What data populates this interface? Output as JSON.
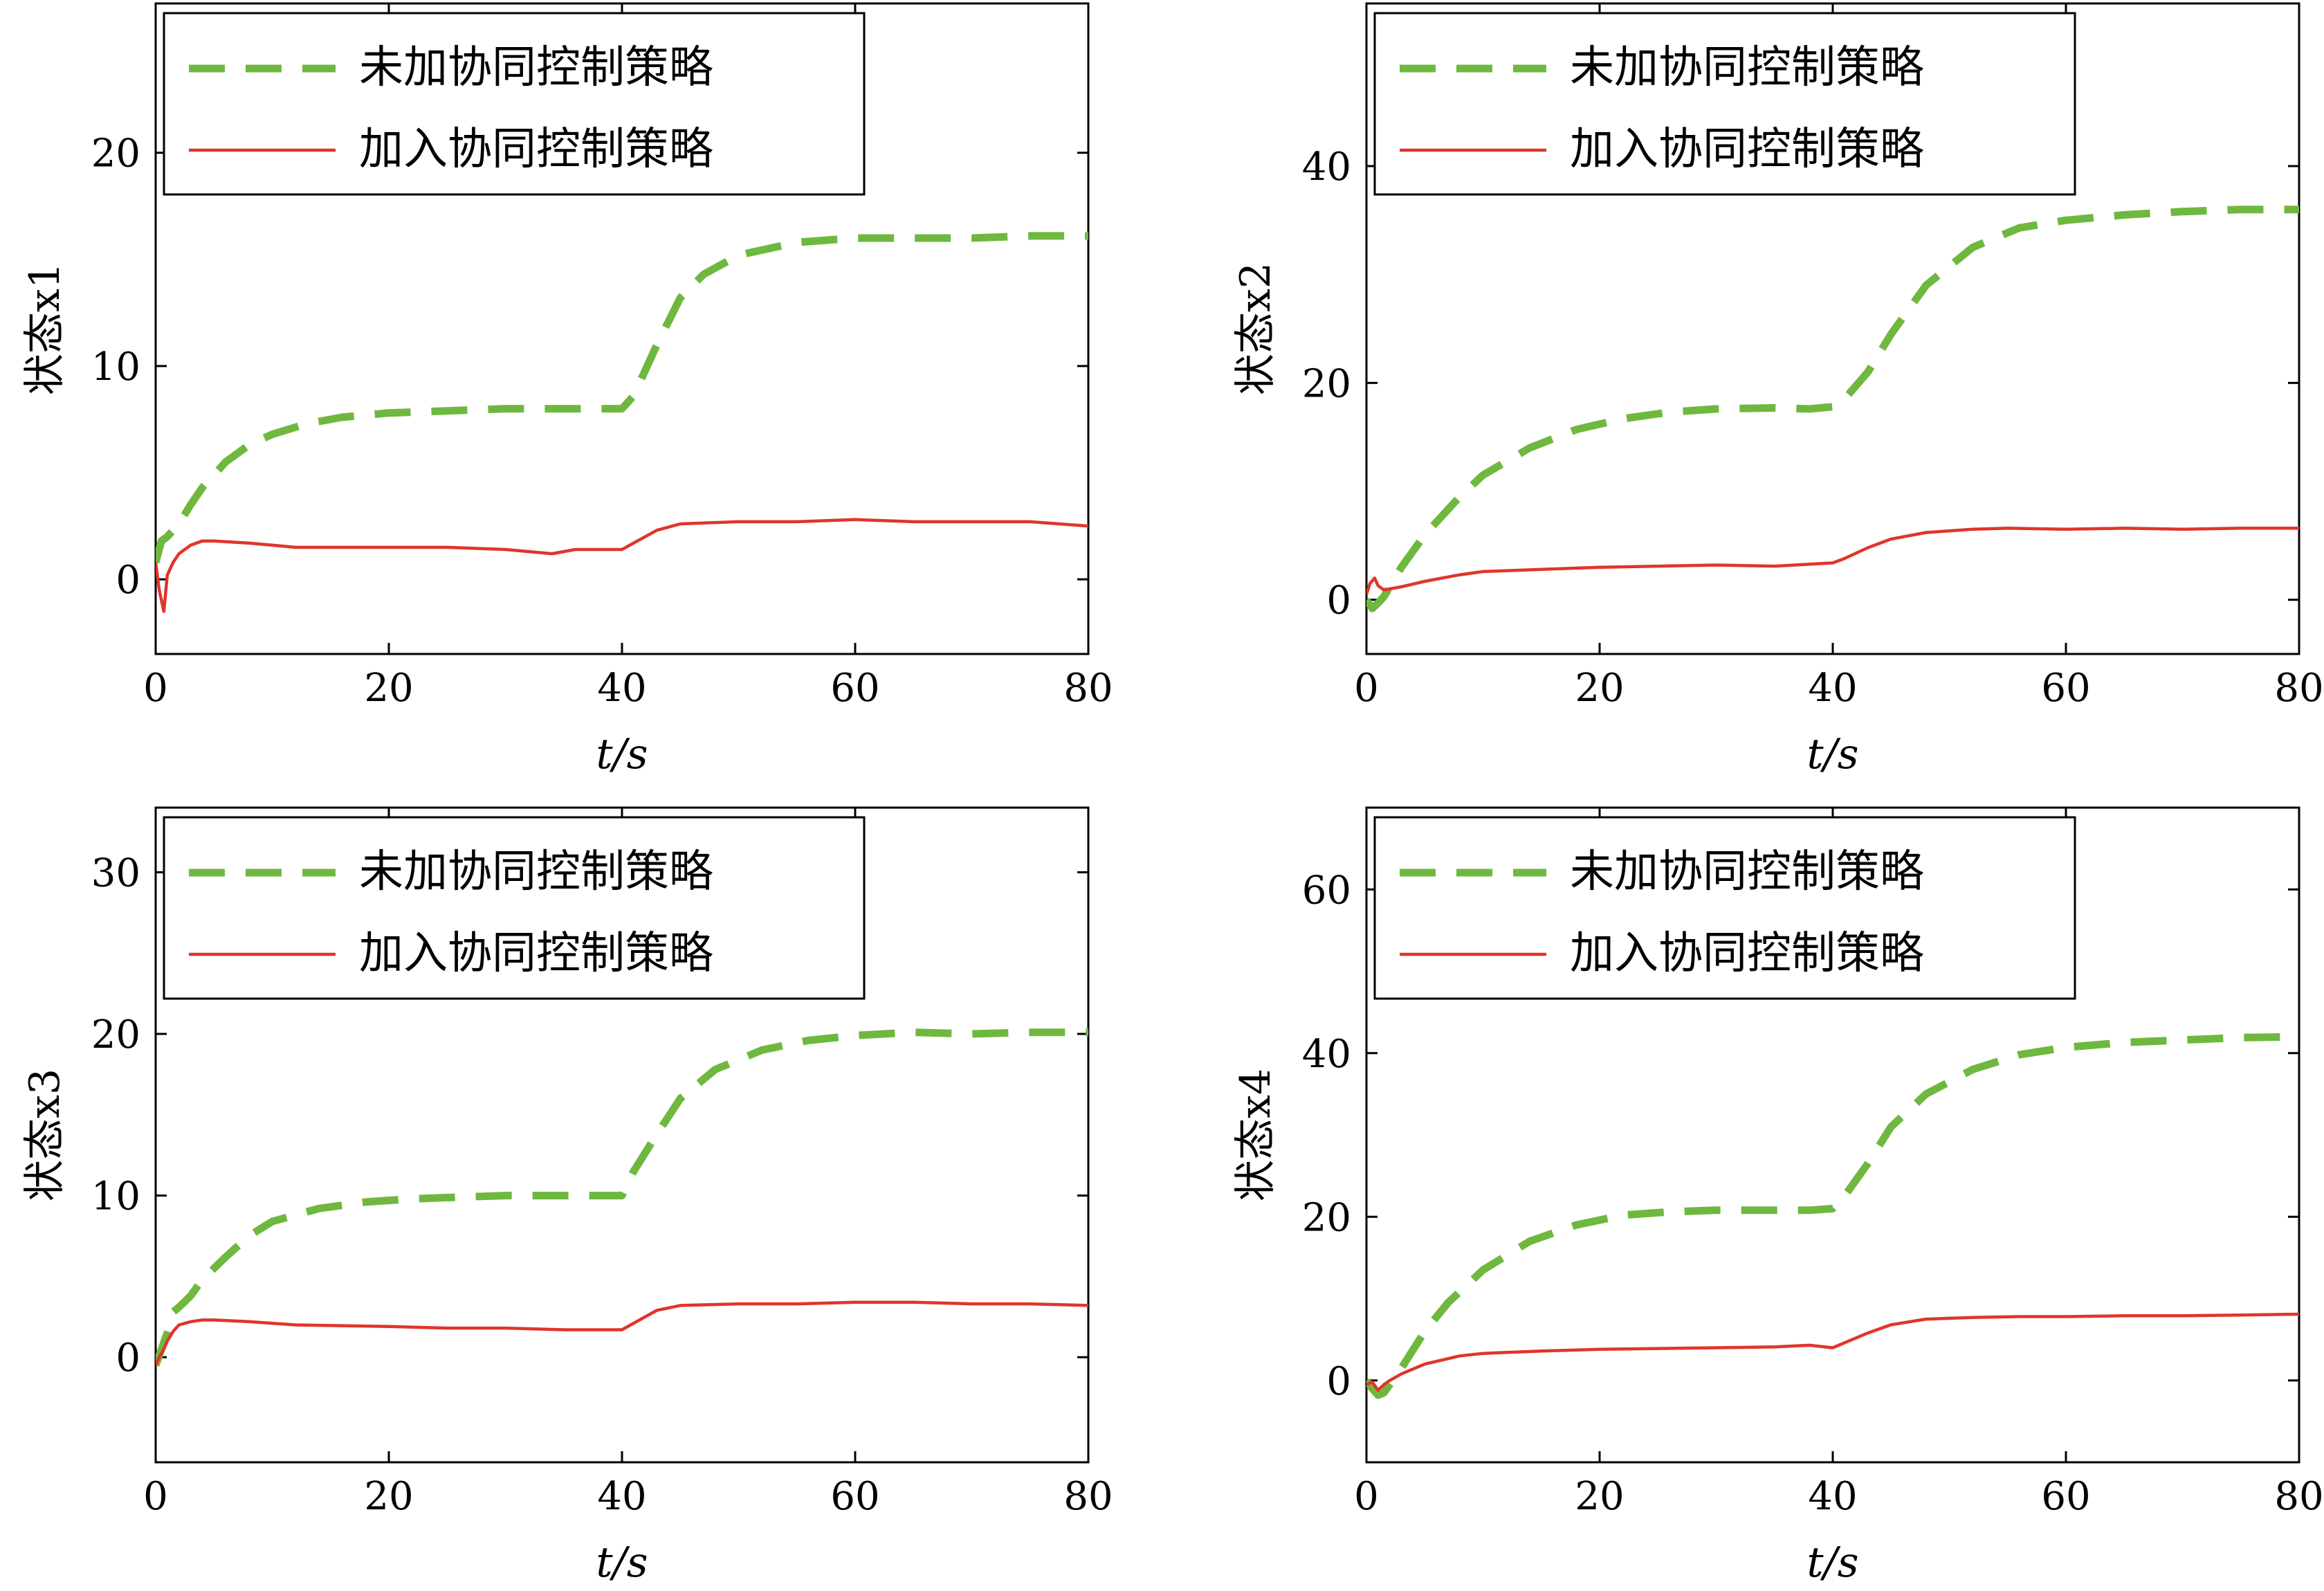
{
  "colors": {
    "without": "#6fb83f",
    "with": "#e0352b",
    "axis": "#000000"
  },
  "chart_data": [
    {
      "type": "line",
      "title": "",
      "xlabel": "t/s",
      "ylabel": "状态x1",
      "xlim": [
        0,
        80
      ],
      "ylim": [
        -3.5,
        27
      ],
      "xticks": [
        "0",
        "20",
        "40",
        "60",
        "80"
      ],
      "yticks": [
        "0",
        "10",
        "20"
      ],
      "ytick_values": [
        0,
        10,
        20
      ],
      "legend": {
        "position": "top-left",
        "entries": [
          "未加协同控制策略",
          "加入协同控制策略"
        ]
      },
      "series": [
        {
          "name": "未加协同控制策略",
          "style": "dashed",
          "x": [
            0,
            0.5,
            1,
            2,
            3,
            4,
            6,
            8,
            10,
            13,
            16,
            20,
            25,
            30,
            35,
            38,
            40,
            41,
            43,
            45,
            47,
            50,
            55,
            60,
            65,
            70,
            75,
            80
          ],
          "y": [
            0.8,
            1.8,
            2.0,
            2.6,
            3.5,
            4.3,
            5.5,
            6.3,
            6.8,
            7.3,
            7.6,
            7.8,
            7.9,
            8.0,
            8.0,
            8.0,
            8.0,
            8.6,
            11.0,
            13.2,
            14.3,
            15.2,
            15.8,
            16.0,
            16.0,
            16.0,
            16.1,
            16.1
          ]
        },
        {
          "name": "加入协同控制策略",
          "style": "solid",
          "x": [
            0,
            0.3,
            0.7,
            1,
            1.5,
            2,
            3,
            4,
            5,
            8,
            12,
            20,
            25,
            30,
            34,
            36,
            40,
            41,
            43,
            45,
            50,
            55,
            60,
            65,
            70,
            75,
            80
          ],
          "y": [
            0.8,
            -0.5,
            -1.5,
            0.2,
            0.8,
            1.2,
            1.6,
            1.8,
            1.8,
            1.7,
            1.5,
            1.5,
            1.5,
            1.4,
            1.2,
            1.4,
            1.4,
            1.7,
            2.3,
            2.6,
            2.7,
            2.7,
            2.8,
            2.7,
            2.7,
            2.7,
            2.5
          ]
        }
      ]
    },
    {
      "type": "line",
      "title": "",
      "xlabel": "t/s",
      "ylabel": "状态x2",
      "xlim": [
        0,
        80
      ],
      "ylim": [
        -5,
        55
      ],
      "xticks": [
        "0",
        "20",
        "40",
        "60",
        "80"
      ],
      "yticks": [
        "0",
        "20",
        "40"
      ],
      "ytick_values": [
        0,
        20,
        40
      ],
      "legend": {
        "position": "top-left",
        "entries": [
          "未加协同控制策略",
          "加入协同控制策略"
        ]
      },
      "series": [
        {
          "name": "未加协同控制策略",
          "style": "dashed",
          "x": [
            0,
            0.5,
            1,
            1.5,
            2,
            3,
            5,
            8,
            10,
            14,
            18,
            22,
            26,
            30,
            35,
            38,
            40,
            41,
            43,
            45,
            48,
            52,
            56,
            60,
            65,
            70,
            75,
            80
          ],
          "y": [
            0,
            -0.8,
            -0.3,
            0.3,
            1.2,
            3,
            6,
            9.5,
            11.5,
            14,
            15.7,
            16.7,
            17.3,
            17.6,
            17.7,
            17.6,
            17.8,
            18.5,
            21,
            24.5,
            29,
            32.5,
            34.3,
            35,
            35.5,
            35.8,
            36,
            36
          ]
        },
        {
          "name": "加入协同控制策略",
          "style": "solid",
          "x": [
            0,
            0.3,
            0.7,
            1,
            1.5,
            2,
            3,
            5,
            8,
            10,
            15,
            20,
            25,
            30,
            35,
            40,
            41,
            43,
            45,
            48,
            52,
            55,
            60,
            65,
            70,
            75,
            80
          ],
          "y": [
            0.5,
            1.5,
            2,
            1.3,
            0.9,
            1.0,
            1.2,
            1.7,
            2.3,
            2.6,
            2.8,
            3.0,
            3.1,
            3.2,
            3.1,
            3.4,
            3.8,
            4.8,
            5.6,
            6.2,
            6.5,
            6.6,
            6.5,
            6.6,
            6.5,
            6.6,
            6.6
          ]
        }
      ]
    },
    {
      "type": "line",
      "title": "",
      "xlabel": "t/s",
      "ylabel": "状态x3",
      "xlim": [
        0,
        80
      ],
      "ylim": [
        -6.5,
        34
      ],
      "xticks": [
        "0",
        "20",
        "40",
        "60",
        "80"
      ],
      "yticks": [
        "0",
        "10",
        "20",
        "30"
      ],
      "ytick_values": [
        0,
        10,
        20,
        30
      ],
      "legend": {
        "position": "top-left",
        "entries": [
          "未加协同控制策略",
          "加入协同控制策略"
        ]
      },
      "series": [
        {
          "name": "未加协同控制策略",
          "style": "dashed",
          "x": [
            0,
            0.5,
            1,
            1.5,
            2,
            3,
            4,
            6,
            8,
            10,
            14,
            18,
            22,
            26,
            30,
            35,
            38,
            40,
            41,
            43,
            45,
            48,
            52,
            56,
            60,
            65,
            70,
            75,
            80
          ],
          "y": [
            -0.5,
            0.5,
            1.5,
            2.8,
            3.1,
            3.8,
            4.8,
            6.2,
            7.5,
            8.4,
            9.2,
            9.6,
            9.8,
            9.9,
            10,
            10,
            10,
            10,
            11.5,
            13.8,
            16,
            17.8,
            19.0,
            19.6,
            19.9,
            20.1,
            20.0,
            20.1,
            20.1
          ]
        },
        {
          "name": "加入协同控制策略",
          "style": "solid",
          "x": [
            0,
            0.3,
            0.7,
            1,
            1.5,
            2,
            3,
            4,
            5,
            8,
            12,
            20,
            25,
            30,
            35,
            38,
            40,
            41,
            43,
            45,
            50,
            55,
            60,
            65,
            70,
            75,
            80
          ],
          "y": [
            -0.5,
            0,
            0.5,
            1.0,
            1.6,
            2.0,
            2.2,
            2.3,
            2.3,
            2.2,
            2.0,
            1.9,
            1.8,
            1.8,
            1.7,
            1.7,
            1.7,
            2.1,
            2.9,
            3.2,
            3.3,
            3.3,
            3.4,
            3.4,
            3.3,
            3.3,
            3.2
          ]
        }
      ]
    },
    {
      "type": "line",
      "title": "",
      "xlabel": "t/s",
      "ylabel": "状态x4",
      "xlim": [
        0,
        80
      ],
      "ylim": [
        -10,
        70
      ],
      "xticks": [
        "0",
        "20",
        "40",
        "60",
        "80"
      ],
      "yticks": [
        "0",
        "20",
        "40",
        "60"
      ],
      "ytick_values": [
        0,
        20,
        40,
        60
      ],
      "legend": {
        "position": "top-left",
        "entries": [
          "未加协同控制策略",
          "加入协同控制策略"
        ]
      },
      "series": [
        {
          "name": "未加协同控制策略",
          "style": "dashed",
          "x": [
            0,
            0.5,
            1,
            1.5,
            2,
            3,
            5,
            7,
            10,
            14,
            18,
            22,
            26,
            30,
            35,
            38,
            40,
            41,
            43,
            45,
            48,
            52,
            56,
            60,
            65,
            70,
            75,
            80
          ],
          "y": [
            0,
            -1,
            -1.8,
            -1.5,
            -0.5,
            1.5,
            6,
            9.5,
            13.5,
            17,
            19,
            20.2,
            20.6,
            20.8,
            20.8,
            20.8,
            21,
            22.5,
            26.5,
            31,
            35,
            38,
            39.8,
            40.7,
            41.3,
            41.6,
            41.9,
            42
          ]
        },
        {
          "name": "加入协同控制策略",
          "style": "solid",
          "x": [
            0,
            0.5,
            1,
            1.5,
            2,
            3,
            5,
            8,
            10,
            15,
            20,
            25,
            30,
            35,
            38,
            40,
            41,
            43,
            45,
            48,
            52,
            56,
            60,
            65,
            70,
            75,
            80
          ],
          "y": [
            -0.5,
            -0.2,
            -1.2,
            -0.5,
            0,
            0.8,
            2.0,
            3.0,
            3.3,
            3.6,
            3.8,
            3.9,
            4.0,
            4.1,
            4.3,
            4.0,
            4.6,
            5.8,
            6.8,
            7.5,
            7.7,
            7.8,
            7.8,
            7.9,
            7.9,
            8.0,
            8.1
          ]
        }
      ]
    }
  ]
}
